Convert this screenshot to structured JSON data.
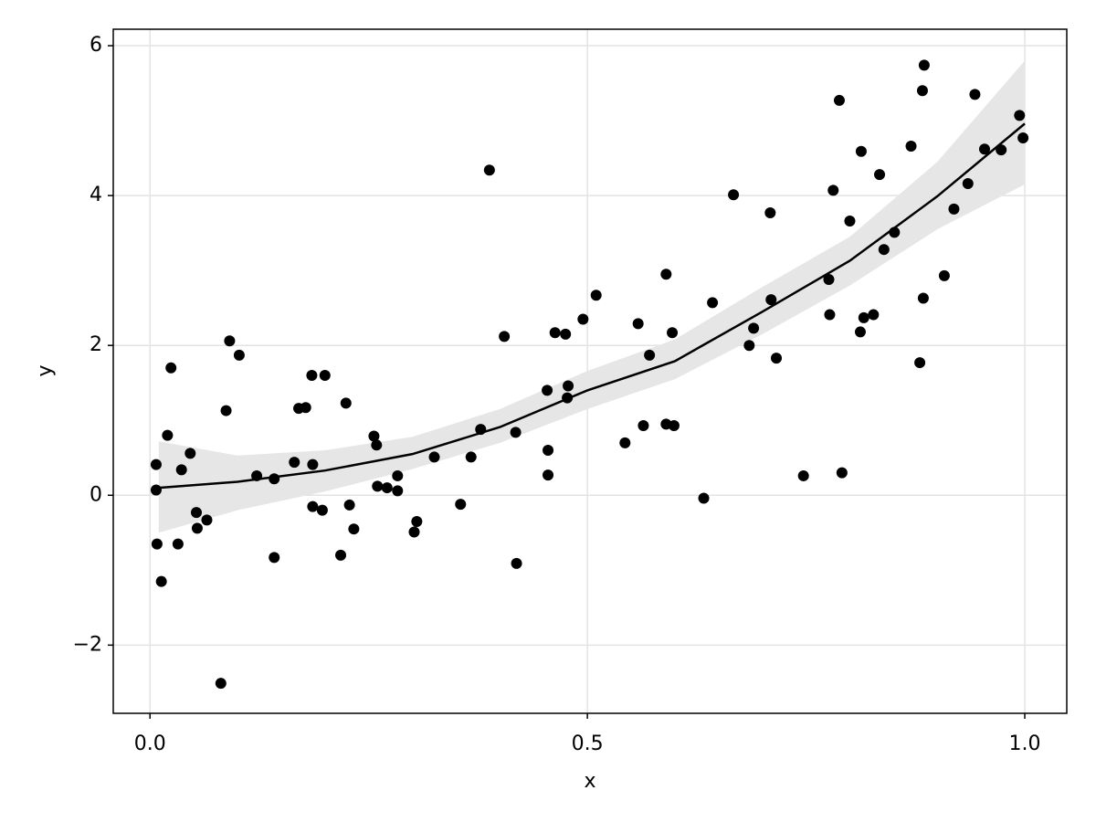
{
  "chart_data": {
    "type": "scatter",
    "x_label": "x",
    "y_label": "y",
    "xlim": [
      -0.042,
      1.048
    ],
    "ylim": [
      -2.91,
      6.22
    ],
    "xticks": [
      {
        "value": 0,
        "label": "0.0"
      },
      {
        "value": 0.5,
        "label": "0.5"
      },
      {
        "value": 1,
        "label": "1.0"
      }
    ],
    "yticks": [
      {
        "value": -2,
        "label": "−2"
      },
      0,
      2,
      4,
      6
    ],
    "grid": true,
    "points": {
      "color": "#000000",
      "x": [
        0.007,
        0.007,
        0.008,
        0.013,
        0.02,
        0.024,
        0.032,
        0.036,
        0.046,
        0.053,
        0.054,
        0.065,
        0.081,
        0.087,
        0.091,
        0.102,
        0.122,
        0.142,
        0.142,
        0.165,
        0.17,
        0.178,
        0.185,
        0.186,
        0.186,
        0.197,
        0.2,
        0.218,
        0.224,
        0.228,
        0.233,
        0.256,
        0.259,
        0.26,
        0.271,
        0.283,
        0.283,
        0.302,
        0.305,
        0.325,
        0.355,
        0.367,
        0.378,
        0.388,
        0.405,
        0.418,
        0.419,
        0.454,
        0.455,
        0.455,
        0.463,
        0.475,
        0.477,
        0.478,
        0.495,
        0.51,
        0.543,
        0.558,
        0.564,
        0.571,
        0.59,
        0.59,
        0.597,
        0.599,
        0.633,
        0.643,
        0.667,
        0.685,
        0.69,
        0.709,
        0.71,
        0.716,
        0.747,
        0.776,
        0.777,
        0.781,
        0.788,
        0.791,
        0.8,
        0.812,
        0.813,
        0.816,
        0.827,
        0.834,
        0.839,
        0.851,
        0.87,
        0.88,
        0.883,
        0.884,
        0.885,
        0.908,
        0.919,
        0.935,
        0.943,
        0.954,
        0.973,
        0.994,
        0.998
      ],
      "y": [
        0.41,
        0.07,
        -0.65,
        -1.15,
        0.8,
        1.7,
        -0.65,
        0.34,
        0.56,
        -0.23,
        -0.44,
        -0.33,
        -2.51,
        1.13,
        2.06,
        1.87,
        0.26,
        0.22,
        -0.83,
        0.44,
        1.16,
        1.17,
        1.6,
        0.41,
        -0.15,
        -0.2,
        1.6,
        -0.8,
        1.23,
        -0.13,
        -0.45,
        0.79,
        0.67,
        0.12,
        0.1,
        0.26,
        0.06,
        -0.49,
        -0.35,
        0.51,
        -0.12,
        0.51,
        0.88,
        4.34,
        2.12,
        0.84,
        -0.91,
        1.4,
        0.6,
        0.27,
        2.17,
        2.15,
        1.3,
        1.46,
        2.35,
        2.67,
        0.7,
        2.29,
        0.93,
        1.87,
        2.95,
        0.95,
        2.17,
        0.93,
        -0.04,
        2.57,
        4.01,
        2.0,
        2.23,
        3.77,
        2.61,
        1.83,
        0.26,
        2.88,
        2.41,
        4.07,
        5.27,
        0.3,
        3.66,
        2.18,
        4.59,
        2.37,
        2.41,
        4.28,
        3.28,
        3.51,
        4.66,
        1.77,
        5.4,
        2.63,
        5.74,
        2.93,
        3.82,
        4.16,
        5.35,
        4.62,
        4.61,
        5.07,
        4.77
      ]
    },
    "fit": {
      "color": "#000000",
      "band_color": "#e6e6e6",
      "x": [
        0.01,
        0.1,
        0.2,
        0.3,
        0.4,
        0.5,
        0.6,
        0.7,
        0.8,
        0.9,
        1.0
      ],
      "y": [
        0.1,
        0.18,
        0.33,
        0.55,
        0.91,
        1.4,
        1.79,
        2.45,
        3.13,
        3.99,
        4.96
      ],
      "lower": [
        -0.5,
        -0.2,
        0.05,
        0.35,
        0.7,
        1.15,
        1.55,
        2.15,
        2.8,
        3.55,
        4.15
      ],
      "upper": [
        0.72,
        0.53,
        0.6,
        0.78,
        1.15,
        1.66,
        2.08,
        2.78,
        3.45,
        4.45,
        5.8
      ]
    }
  }
}
